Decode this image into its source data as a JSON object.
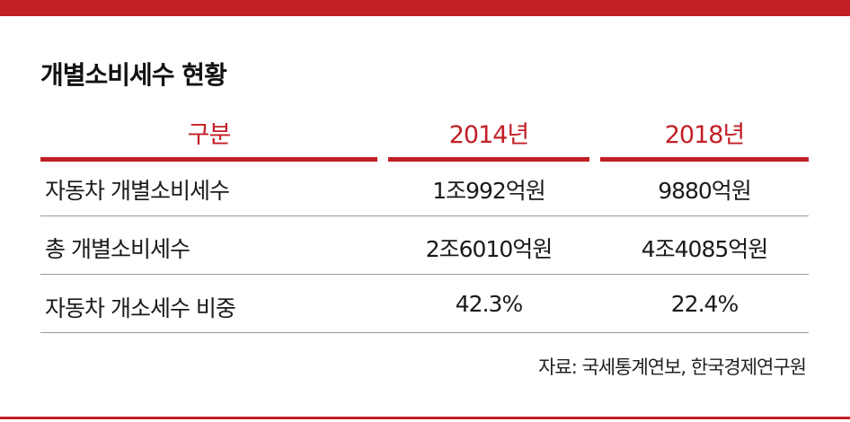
{
  "title": "개별소비세수 현황",
  "table": {
    "headers": [
      "구분",
      "2014년",
      "2018년"
    ],
    "rows": [
      {
        "label": "자동차 개별소비세수",
        "y2014": "1조992억원",
        "y2018": "9880억원"
      },
      {
        "label": "총 개별소비세수",
        "y2014": "2조6010억원",
        "y2018": "4조4085억원"
      },
      {
        "label": "자동차 개소세수 비중",
        "y2014": "42.3%",
        "y2018": "22.4%"
      }
    ]
  },
  "source": "자료: 국세통계연보, 한국경제연구원",
  "colors": {
    "accent": "#c21f26",
    "text": "#1a1a1a",
    "divider": "#9a9a9a"
  }
}
